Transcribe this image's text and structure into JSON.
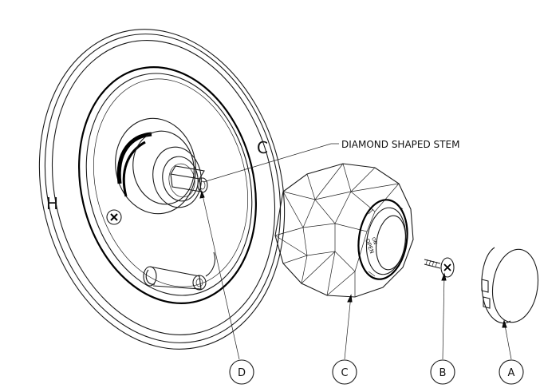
{
  "labels": {
    "hot": "H",
    "cold": "C",
    "stem_callout": "DIAMOND SHAPED STEM"
  },
  "parts": [
    {
      "id": "D"
    },
    {
      "id": "C"
    },
    {
      "id": "B"
    },
    {
      "id": "A"
    }
  ],
  "colors": {
    "line": "#1a1a1a",
    "background": "#ffffff"
  }
}
